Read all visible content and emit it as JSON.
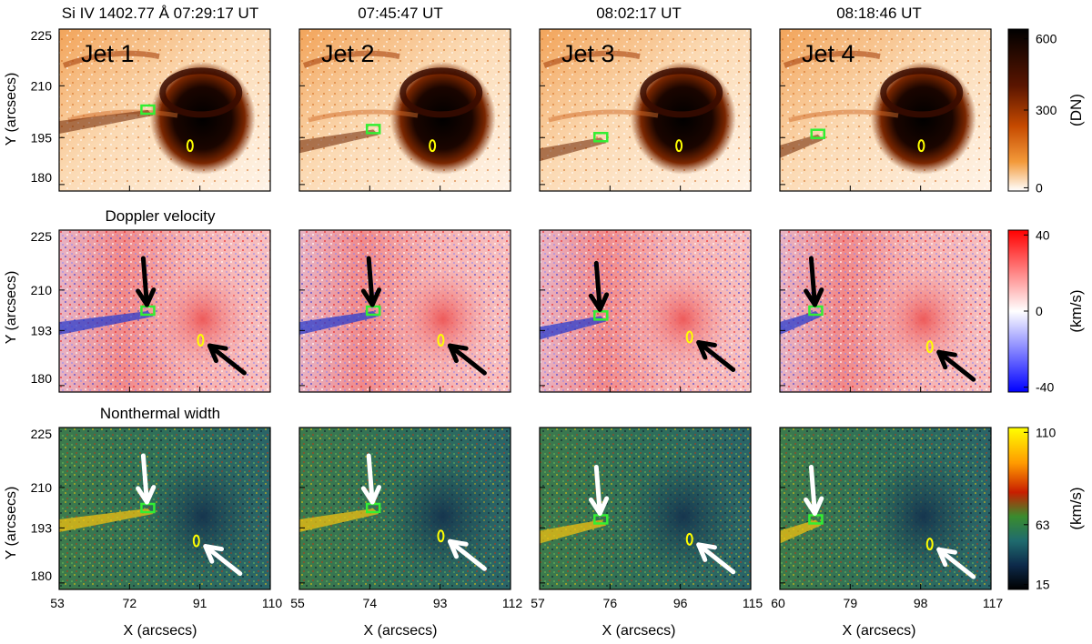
{
  "figure": {
    "column_titles": [
      "Si IV 1402.77 Å 07:29:17 UT",
      "07:45:47 UT",
      "08:02:17 UT",
      "08:18:46 UT"
    ],
    "row_titles": [
      "",
      "Doppler velocity",
      "Nonthermal width"
    ],
    "jet_labels": [
      "Jet 1",
      "Jet 2",
      "Jet 3",
      "Jet 4"
    ],
    "y_axis_label": "Y (arcsecs)",
    "x_axis_label": "X (arcsecs)",
    "y_ticks": [
      [
        "225",
        "210",
        "195",
        "180"
      ],
      [
        "225",
        "210",
        "193",
        "180"
      ],
      [
        "225",
        "210",
        "193",
        "180"
      ]
    ],
    "x_ticks": [
      [
        "53",
        "72",
        "91",
        "110"
      ],
      [
        "55",
        "74",
        "93",
        "112"
      ],
      [
        "57",
        "76",
        "96",
        "115"
      ],
      [
        "60",
        "79",
        "98",
        "117"
      ]
    ],
    "colorbars": [
      {
        "unit": "(DN)",
        "ticks": [
          "600",
          "300",
          "0"
        ],
        "colors": [
          "#000000",
          "#5a1500",
          "#c64a00",
          "#f39a3a",
          "#ffffff"
        ]
      },
      {
        "unit": "(km/s)",
        "ticks": [
          "40",
          "0",
          "-40"
        ],
        "colors": [
          "#ff0000",
          "#ffffff",
          "#0000ff"
        ]
      },
      {
        "unit": "(km/s)",
        "ticks": [
          "110",
          "63",
          "15"
        ],
        "colors": [
          "#ffff00",
          "#ff9a00",
          "#c81e00",
          "#3a8c2e",
          "#1f6b6e",
          "#0d2a4a",
          "#000000"
        ]
      }
    ],
    "markers": {
      "box_color": "#33ee33",
      "loop_color": "#ffff00",
      "arrow_dark": "#000000",
      "arrow_light": "#ffffff"
    }
  }
}
